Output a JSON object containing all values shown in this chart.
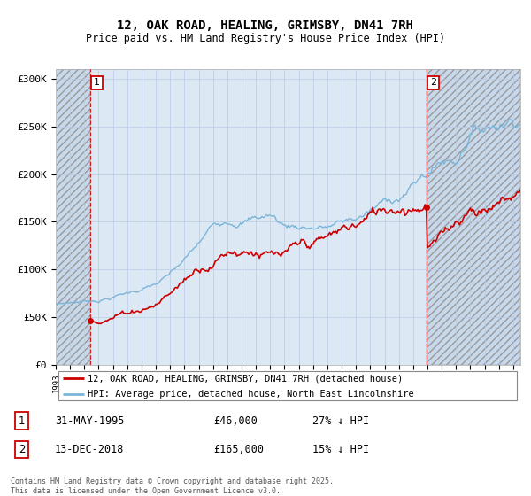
{
  "title1": "12, OAK ROAD, HEALING, GRIMSBY, DN41 7RH",
  "title2": "Price paid vs. HM Land Registry's House Price Index (HPI)",
  "ylim": [
    0,
    310000
  ],
  "yticks": [
    0,
    50000,
    100000,
    150000,
    200000,
    250000,
    300000
  ],
  "ytick_labels": [
    "£0",
    "£50K",
    "£100K",
    "£150K",
    "£200K",
    "£250K",
    "£300K"
  ],
  "sale1_date": 1995.42,
  "sale1_price": 46000,
  "sale1_label": "1",
  "sale2_date": 2018.95,
  "sale2_price": 165000,
  "sale2_label": "2",
  "hpi_color": "#7ab5d8",
  "sale_color": "#cc0000",
  "dashed_color": "#cc0000",
  "background_color": "#dde8f5",
  "legend1": "12, OAK ROAD, HEALING, GRIMSBY, DN41 7RH (detached house)",
  "legend2": "HPI: Average price, detached house, North East Lincolnshire",
  "info1_label": "1",
  "info1_date": "31-MAY-1995",
  "info1_price": "£46,000",
  "info1_hpi": "27% ↓ HPI",
  "info2_label": "2",
  "info2_date": "13-DEC-2018",
  "info2_price": "£165,000",
  "info2_hpi": "15% ↓ HPI",
  "footer": "Contains HM Land Registry data © Crown copyright and database right 2025.\nThis data is licensed under the Open Government Licence v3.0.",
  "xmin": 1993.0,
  "xmax": 2025.5
}
